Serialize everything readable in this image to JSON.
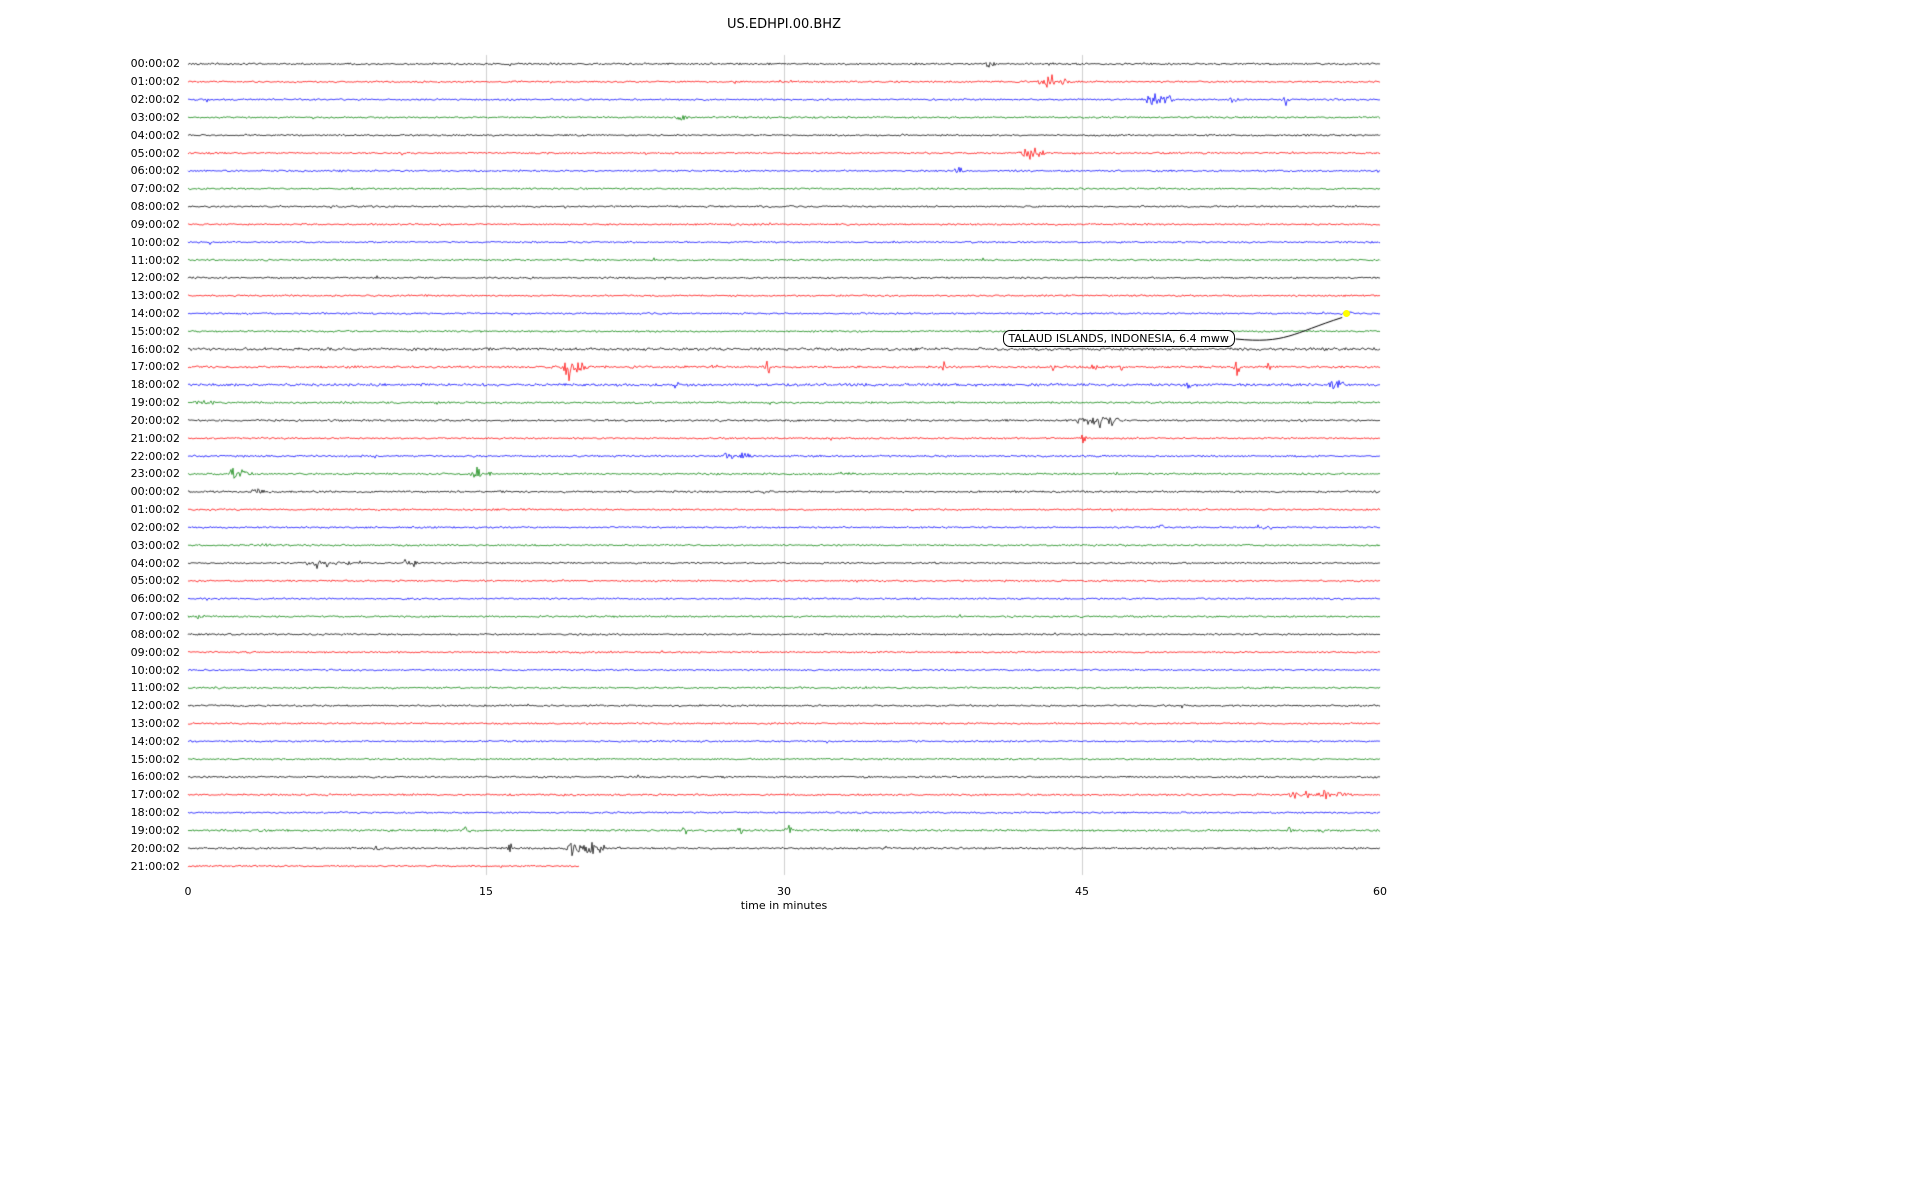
{
  "chart_data": {
    "type": "line",
    "kind": "helicorder-seismogram",
    "title": "US.EDHPI.00.BHZ",
    "xlabel": "time in minutes",
    "xaxis": {
      "min": 0,
      "max": 60,
      "tick_labels": [
        "0",
        "15",
        "30",
        "45",
        "60"
      ],
      "tick_values": [
        0,
        15,
        30,
        45,
        60
      ],
      "grid_ticks": [
        15,
        30,
        45
      ],
      "grid_color": "#cfcfcf"
    },
    "color_cycle": [
      "#000000",
      "#ff0000",
      "#0000ff",
      "#008000"
    ],
    "annotation": {
      "text": "TALAUD ISLANDS, INDONESIA, 6.4 mww",
      "marker_row_index": 14,
      "marker_t_minutes": 58.3,
      "marker_color": "#ffff00",
      "box_t_minutes": 41.0,
      "box_row_position": 15.93
    },
    "rows": [
      {
        "label": "00:00:02",
        "noise": 1.1,
        "events": [
          {
            "t": 18.2,
            "a": 5,
            "w": 0.12
          },
          {
            "t": 40.3,
            "a": 3,
            "w": 0.3
          },
          {
            "t": 43.5,
            "a": 3,
            "w": 0.2
          }
        ]
      },
      {
        "label": "01:00:02",
        "noise": 1.0,
        "events": [
          {
            "t": 43.3,
            "a": 9,
            "w": 0.5
          },
          {
            "t": 44.2,
            "a": 6,
            "w": 0.3
          }
        ]
      },
      {
        "label": "02:00:02",
        "noise": 1.0,
        "events": [
          {
            "t": 48.6,
            "a": 7,
            "w": 0.5
          },
          {
            "t": 49.3,
            "a": 6,
            "w": 0.3
          },
          {
            "t": 52.6,
            "a": 3,
            "w": 0.3
          },
          {
            "t": 55.3,
            "a": 9,
            "w": 0.15
          }
        ]
      },
      {
        "label": "03:00:02",
        "noise": 1.0,
        "events": [
          {
            "t": 24.8,
            "a": 3.5,
            "w": 0.4
          }
        ]
      },
      {
        "label": "04:00:02",
        "noise": 1.0,
        "events": []
      },
      {
        "label": "05:00:02",
        "noise": 1.0,
        "events": [
          {
            "t": 42.4,
            "a": 10,
            "w": 0.5
          },
          {
            "t": 43.0,
            "a": 5,
            "w": 0.4
          }
        ]
      },
      {
        "label": "06:00:02",
        "noise": 1.0,
        "events": [
          {
            "t": 38.8,
            "a": 3,
            "w": 0.3
          }
        ]
      },
      {
        "label": "07:00:02",
        "noise": 1.0,
        "events": []
      },
      {
        "label": "08:00:02",
        "noise": 1.0,
        "events": []
      },
      {
        "label": "09:00:02",
        "noise": 1.0,
        "events": []
      },
      {
        "label": "10:00:02",
        "noise": 1.0,
        "events": []
      },
      {
        "label": "11:00:02",
        "noise": 1.0,
        "events": []
      },
      {
        "label": "12:00:02",
        "noise": 1.0,
        "events": []
      },
      {
        "label": "13:00:02",
        "noise": 1.0,
        "events": []
      },
      {
        "label": "14:00:02",
        "noise": 1.0,
        "events": [
          {
            "t": 58.4,
            "a": 3,
            "w": 0.5
          }
        ]
      },
      {
        "label": "15:00:02",
        "noise": 1.0,
        "events": []
      },
      {
        "label": "16:00:02",
        "noise": 1.55,
        "events": []
      },
      {
        "label": "17:00:02",
        "noise": 1.25,
        "events": [
          {
            "t": 19.2,
            "a": 13,
            "w": 0.35
          },
          {
            "t": 19.6,
            "a": 8,
            "w": 0.5
          },
          {
            "t": 22.5,
            "a": 6,
            "w": 0.15
          },
          {
            "t": 26.5,
            "a": 4,
            "w": 0.15
          },
          {
            "t": 29.2,
            "a": 7,
            "w": 0.15
          },
          {
            "t": 38.0,
            "a": 5,
            "w": 0.2
          },
          {
            "t": 43.5,
            "a": 4,
            "w": 0.15
          },
          {
            "t": 45.6,
            "a": 6,
            "w": 0.2
          },
          {
            "t": 47.0,
            "a": 4,
            "w": 0.15
          },
          {
            "t": 52.8,
            "a": 8,
            "w": 0.2
          },
          {
            "t": 54.4,
            "a": 6,
            "w": 0.15
          }
        ]
      },
      {
        "label": "18:00:02",
        "noise": 1.5,
        "events": [
          {
            "t": 24.6,
            "a": 7,
            "w": 0.15
          },
          {
            "t": 50.4,
            "a": 4,
            "w": 0.2
          },
          {
            "t": 57.6,
            "a": 9,
            "w": 0.2
          },
          {
            "t": 58.0,
            "a": 5,
            "w": 0.3
          }
        ]
      },
      {
        "label": "19:00:02",
        "noise": 1.1,
        "events": [
          {
            "t": 0.8,
            "a": 3,
            "w": 0.6
          }
        ]
      },
      {
        "label": "20:00:02",
        "noise": 1.1,
        "events": [
          {
            "t": 44.9,
            "a": 4,
            "w": 0.2
          },
          {
            "t": 45.2,
            "a": 5,
            "w": 0.3
          },
          {
            "t": 45.9,
            "a": 7,
            "w": 0.5
          },
          {
            "t": 46.6,
            "a": 6,
            "w": 0.4
          }
        ]
      },
      {
        "label": "21:00:02",
        "noise": 1.0,
        "events": [
          {
            "t": 45.1,
            "a": 11,
            "w": 0.12
          }
        ]
      },
      {
        "label": "22:00:02",
        "noise": 1.1,
        "events": [
          {
            "t": 27.2,
            "a": 7,
            "w": 0.3
          },
          {
            "t": 28.0,
            "a": 6,
            "w": 0.25
          }
        ]
      },
      {
        "label": "23:00:02",
        "noise": 1.1,
        "events": [
          {
            "t": 2.3,
            "a": 7,
            "w": 0.35
          },
          {
            "t": 2.8,
            "a": 4,
            "w": 0.2
          },
          {
            "t": 14.5,
            "a": 8,
            "w": 0.3
          },
          {
            "t": 15.2,
            "a": 4,
            "w": 0.2
          },
          {
            "t": 33.0,
            "a": 3,
            "w": 0.4
          }
        ]
      },
      {
        "label": "00:00:02",
        "noise": 1.1,
        "events": [
          {
            "t": 3.5,
            "a": 3,
            "w": 0.4
          }
        ]
      },
      {
        "label": "01:00:02",
        "noise": 1.0,
        "events": []
      },
      {
        "label": "02:00:02",
        "noise": 1.0,
        "events": [
          {
            "t": 49.0,
            "a": 4,
            "w": 0.2
          },
          {
            "t": 54.0,
            "a": 6,
            "w": 0.2
          },
          {
            "t": 54.4,
            "a": 4,
            "w": 0.15
          }
        ]
      },
      {
        "label": "03:00:02",
        "noise": 1.0,
        "events": [
          {
            "t": 4.0,
            "a": 3,
            "w": 0.3
          }
        ]
      },
      {
        "label": "04:00:02",
        "noise": 1.0,
        "events": [
          {
            "t": 6.0,
            "a": 5,
            "w": 0.15
          },
          {
            "t": 6.5,
            "a": 6,
            "w": 0.2
          },
          {
            "t": 7.0,
            "a": 7,
            "w": 0.15
          },
          {
            "t": 7.5,
            "a": 5,
            "w": 0.15
          },
          {
            "t": 8.0,
            "a": 4,
            "w": 0.15
          },
          {
            "t": 11.0,
            "a": 6,
            "w": 0.2
          },
          {
            "t": 11.4,
            "a": 4,
            "w": 0.15
          }
        ]
      },
      {
        "label": "05:00:02",
        "noise": 1.0,
        "events": []
      },
      {
        "label": "06:00:02",
        "noise": 1.0,
        "events": []
      },
      {
        "label": "07:00:02",
        "noise": 1.0,
        "events": [
          {
            "t": 0.5,
            "a": 3,
            "w": 0.3
          }
        ]
      },
      {
        "label": "08:00:02",
        "noise": 1.0,
        "events": []
      },
      {
        "label": "09:00:02",
        "noise": 1.0,
        "events": []
      },
      {
        "label": "10:00:02",
        "noise": 1.0,
        "events": []
      },
      {
        "label": "11:00:02",
        "noise": 1.0,
        "events": []
      },
      {
        "label": "12:00:02",
        "noise": 1.0,
        "events": []
      },
      {
        "label": "13:00:02",
        "noise": 1.0,
        "events": []
      },
      {
        "label": "14:00:02",
        "noise": 1.0,
        "events": []
      },
      {
        "label": "15:00:02",
        "noise": 1.0,
        "events": []
      },
      {
        "label": "16:00:02",
        "noise": 1.1,
        "events": []
      },
      {
        "label": "17:00:02",
        "noise": 1.1,
        "events": [
          {
            "t": 55.6,
            "a": 8,
            "w": 0.25
          },
          {
            "t": 56.3,
            "a": 5,
            "w": 0.3
          },
          {
            "t": 57.2,
            "a": 5,
            "w": 0.4
          },
          {
            "t": 58.0,
            "a": 4,
            "w": 0.3
          }
        ]
      },
      {
        "label": "18:00:02",
        "noise": 1.0,
        "events": []
      },
      {
        "label": "19:00:02",
        "noise": 1.15,
        "events": [
          {
            "t": 14.0,
            "a": 5,
            "w": 0.25
          },
          {
            "t": 25.0,
            "a": 6,
            "w": 0.2
          },
          {
            "t": 27.8,
            "a": 10,
            "w": 0.12
          },
          {
            "t": 30.2,
            "a": 7,
            "w": 0.2
          },
          {
            "t": 55.5,
            "a": 4,
            "w": 0.2
          },
          {
            "t": 57.0,
            "a": 4,
            "w": 0.2
          }
        ]
      },
      {
        "label": "20:00:02",
        "noise": 1.1,
        "events": [
          {
            "t": 9.5,
            "a": 5,
            "w": 0.15
          },
          {
            "t": 16.2,
            "a": 7,
            "w": 0.12
          },
          {
            "t": 19.3,
            "a": 8,
            "w": 0.3
          },
          {
            "t": 19.8,
            "a": 11,
            "w": 0.25
          },
          {
            "t": 20.3,
            "a": 9,
            "w": 0.3
          },
          {
            "t": 20.8,
            "a": 6,
            "w": 0.2
          }
        ]
      },
      {
        "label": "21:00:02",
        "noise": 1.0,
        "end": 19.7,
        "events": []
      }
    ]
  }
}
